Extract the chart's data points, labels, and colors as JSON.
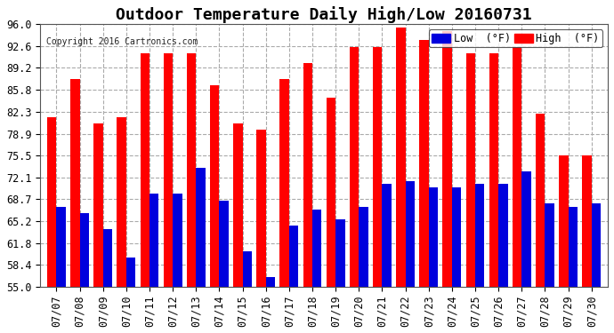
{
  "title": "Outdoor Temperature Daily High/Low 20160731",
  "copyright": "Copyright 2016 Cartronics.com",
  "legend_low": "Low  (°F)",
  "legend_high": "High  (°F)",
  "dates": [
    "07/07",
    "07/08",
    "07/09",
    "07/10",
    "07/11",
    "07/12",
    "07/13",
    "07/14",
    "07/15",
    "07/16",
    "07/17",
    "07/18",
    "07/19",
    "07/20",
    "07/21",
    "07/22",
    "07/23",
    "07/24",
    "07/25",
    "07/26",
    "07/27",
    "07/28",
    "07/29",
    "07/30"
  ],
  "high": [
    81.5,
    87.5,
    80.5,
    81.5,
    91.5,
    91.5,
    91.5,
    86.5,
    80.5,
    79.5,
    87.5,
    90.0,
    84.5,
    92.5,
    92.5,
    95.5,
    93.5,
    95.0,
    91.5,
    91.5,
    92.5,
    82.0,
    75.5,
    75.5
  ],
  "low": [
    67.5,
    66.5,
    64.0,
    59.5,
    69.5,
    69.5,
    73.5,
    68.5,
    60.5,
    56.5,
    64.5,
    67.0,
    65.5,
    67.5,
    71.0,
    71.5,
    70.5,
    70.5,
    71.0,
    71.0,
    73.0,
    68.0,
    67.5,
    68.0
  ],
  "bar_color_high": "#ff0000",
  "bar_color_low": "#0000dd",
  "background_color": "#ffffff",
  "plot_bg_color": "#ffffff",
  "grid_color": "#aaaaaa",
  "yticks": [
    55.0,
    58.4,
    61.8,
    65.2,
    68.7,
    72.1,
    75.5,
    78.9,
    82.3,
    85.8,
    89.2,
    92.6,
    96.0
  ],
  "ylim": [
    55.0,
    96.0
  ],
  "title_fontsize": 13,
  "tick_fontsize": 8.5,
  "legend_fontsize": 8.5,
  "bar_width": 0.4
}
